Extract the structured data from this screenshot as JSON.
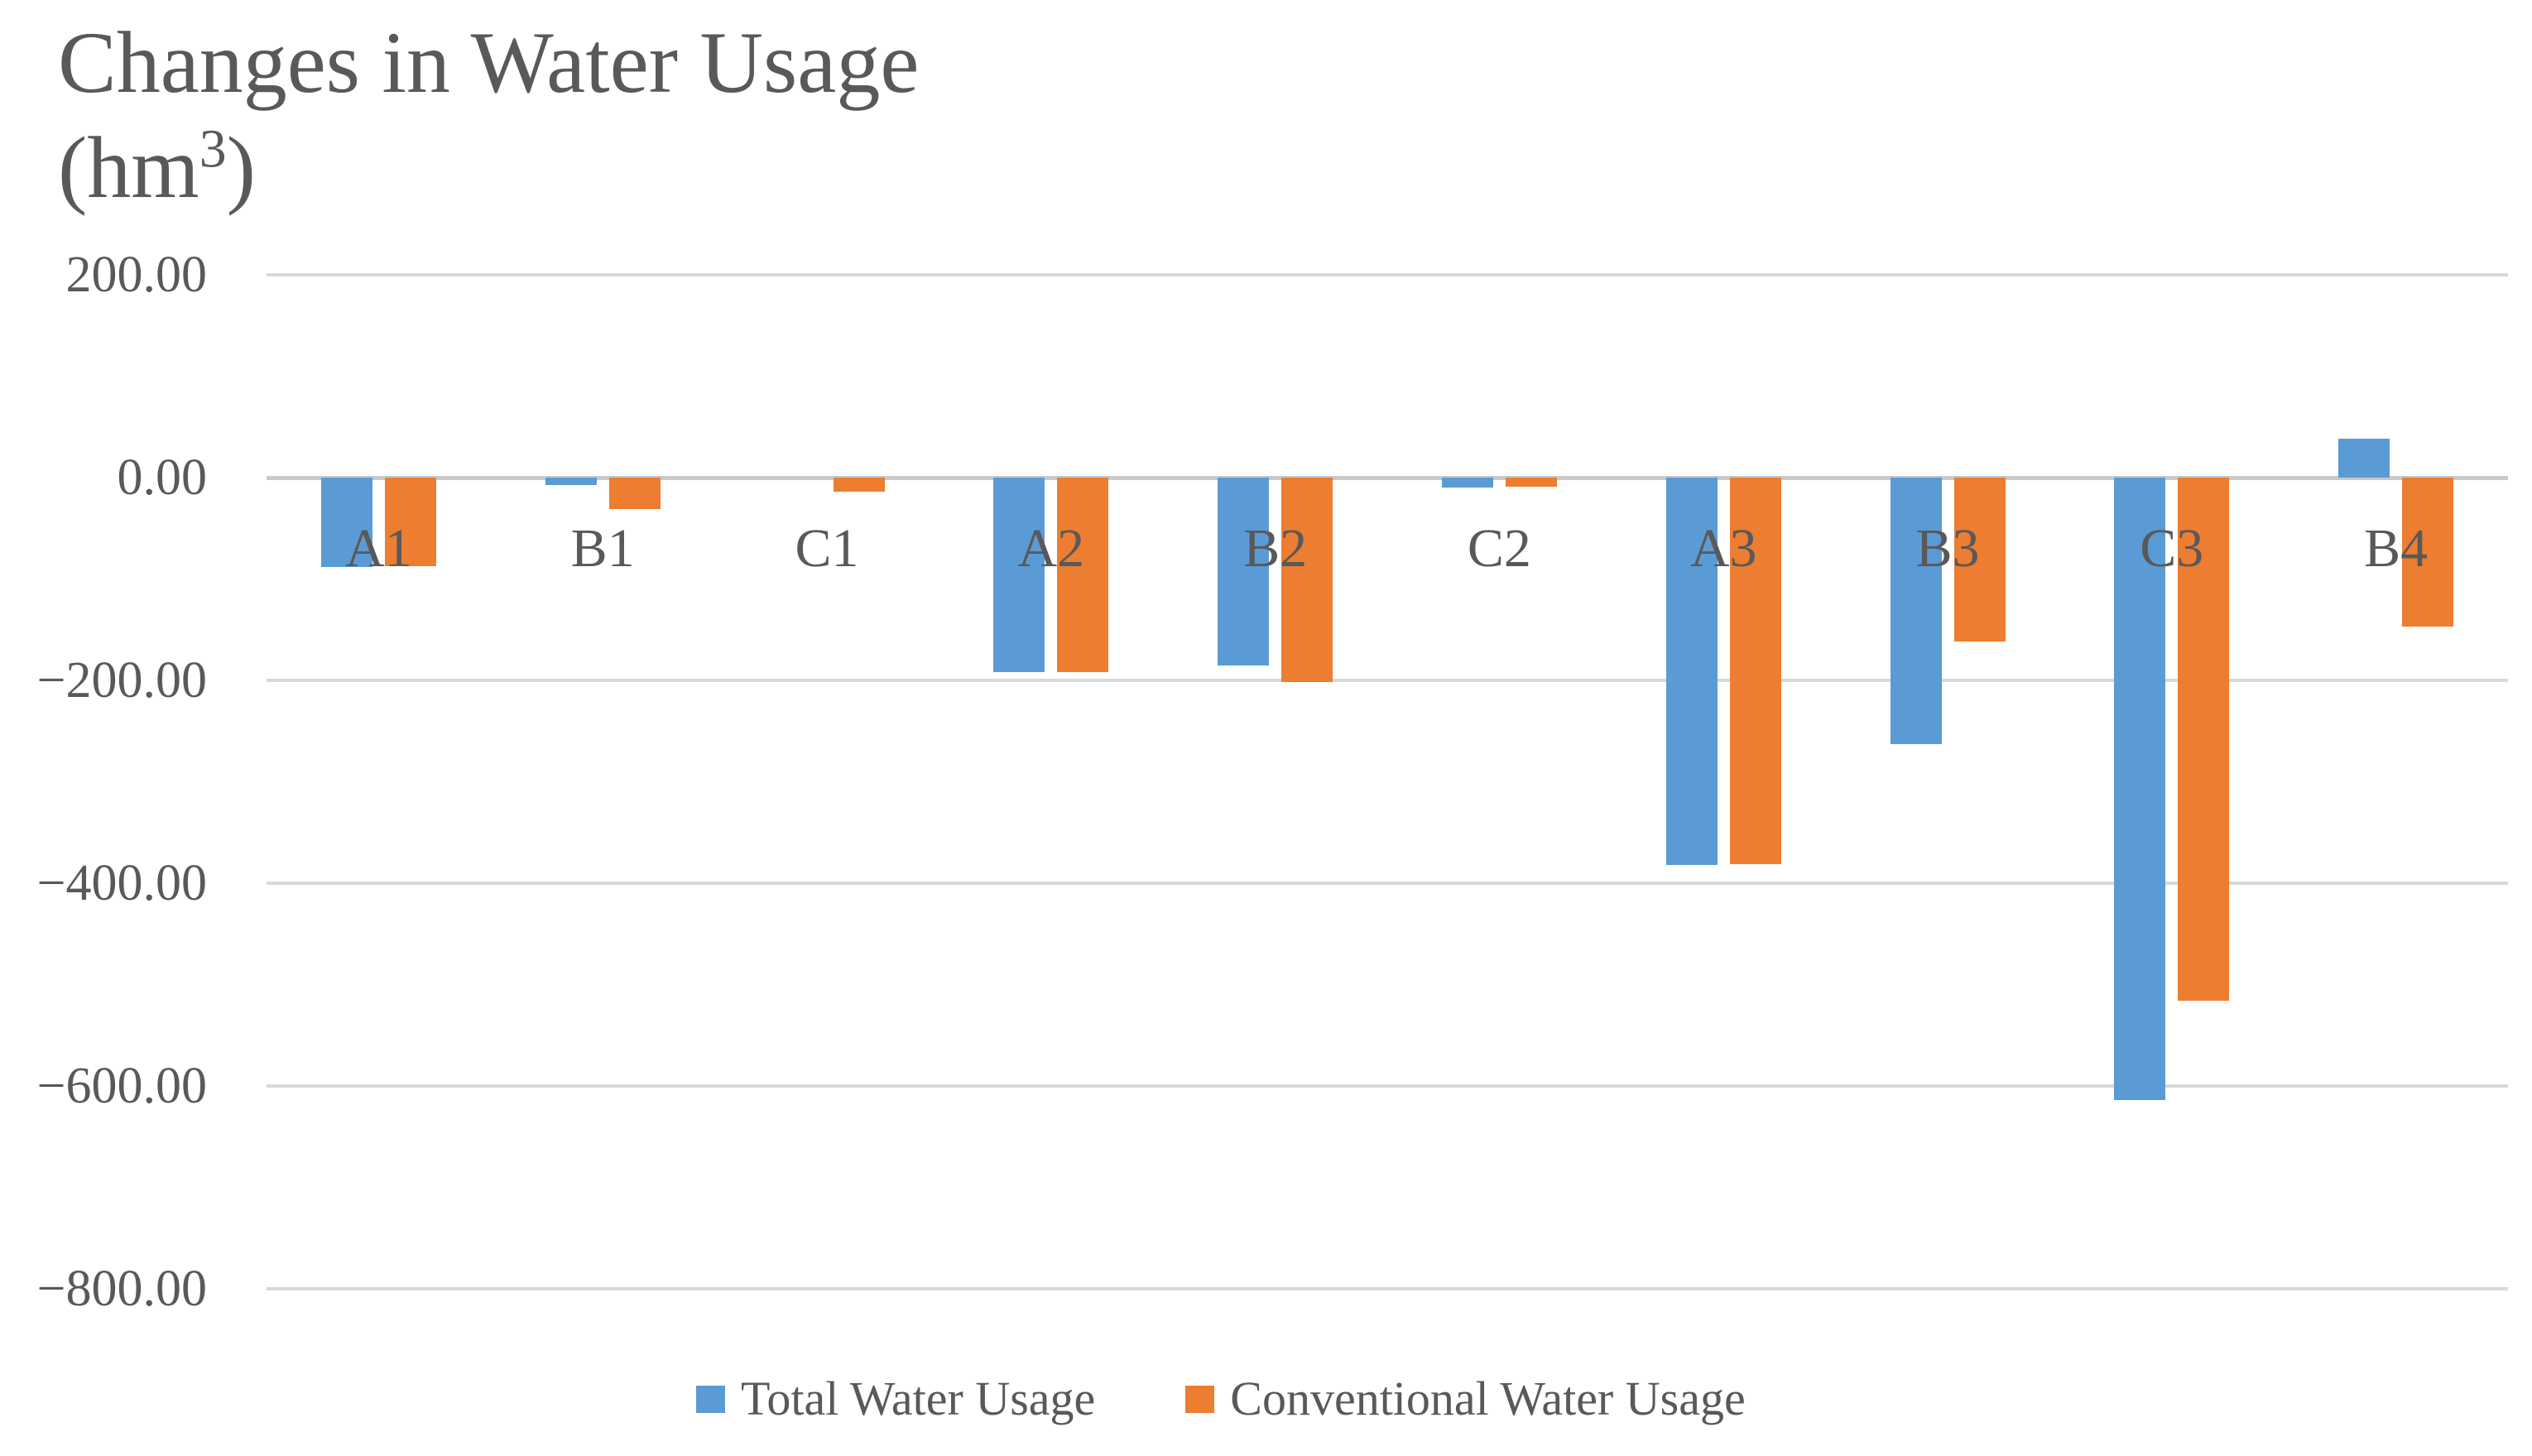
{
  "title": {
    "line1": "Changes in Water Usage",
    "line2_pre": "(hm",
    "line2_sup": "3",
    "line2_post": ")"
  },
  "colors": {
    "total_series": "#5B9BD5",
    "conventional_series": "#ED7D31",
    "gridline": "#D9D9D9",
    "zero_line": "#C9C9C9",
    "text": "#595959"
  },
  "legend": {
    "items": [
      {
        "label": "Total Water Usage",
        "color": "#5B9BD5"
      },
      {
        "label": "Conventional Water Usage",
        "color": "#ED7D31"
      }
    ]
  },
  "chart_data": {
    "type": "bar",
    "title": "Changes in Water Usage (hm³)",
    "xlabel": "",
    "ylabel": "hm³",
    "ylim": [
      -800,
      200
    ],
    "grid": true,
    "legend_position": "bottom",
    "categories": [
      "A1",
      "B1",
      "C1",
      "A2",
      "B2",
      "C2",
      "A3",
      "B3",
      "C3",
      "B4"
    ],
    "series": [
      {
        "name": "Total Water Usage",
        "color": "#5B9BD5",
        "values": [
          -88,
          -7,
          0,
          -192,
          -185,
          -10,
          -382,
          -263,
          -614,
          38
        ]
      },
      {
        "name": "Conventional Water Usage",
        "color": "#ED7D31",
        "values": [
          -87,
          -31,
          -14,
          -192,
          -202,
          -9,
          -381,
          -162,
          -516,
          -147
        ]
      }
    ],
    "yticks": {
      "values": [
        200,
        0,
        -200,
        -400,
        -600,
        -800
      ],
      "labels": [
        "200.00",
        "0.00",
        "−200.00",
        "−400.00",
        "−600.00",
        "−800.00"
      ]
    }
  }
}
